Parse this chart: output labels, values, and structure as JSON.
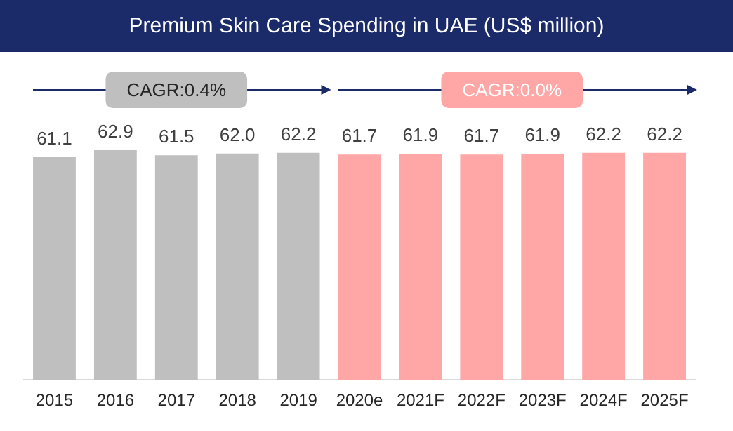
{
  "chart_data": {
    "type": "bar",
    "title": "Premium Skin Care Spending in UAE (US$ million)",
    "categories": [
      "2015",
      "2016",
      "2017",
      "2018",
      "2019",
      "2020e",
      "2021F",
      "2022F",
      "2023F",
      "2024F",
      "2025F"
    ],
    "values": [
      61.1,
      62.9,
      61.5,
      62.0,
      62.2,
      61.7,
      61.9,
      61.7,
      61.9,
      62.2,
      62.2
    ],
    "value_labels": [
      "61.1",
      "62.9",
      "61.5",
      "62.0",
      "62.2",
      "61.7",
      "61.9",
      "61.7",
      "61.9",
      "62.2",
      "62.2"
    ],
    "colors": [
      "#bfbfbf",
      "#bfbfbf",
      "#bfbfbf",
      "#bfbfbf",
      "#bfbfbf",
      "#ffa6a6",
      "#ffa6a6",
      "#ffa6a6",
      "#ffa6a6",
      "#ffa6a6",
      "#ffa6a6"
    ],
    "annotations": [
      "CAGR:0.4%",
      "CAGR:0.0%"
    ],
    "grid": false,
    "legend": false,
    "tick_labels": "x"
  }
}
